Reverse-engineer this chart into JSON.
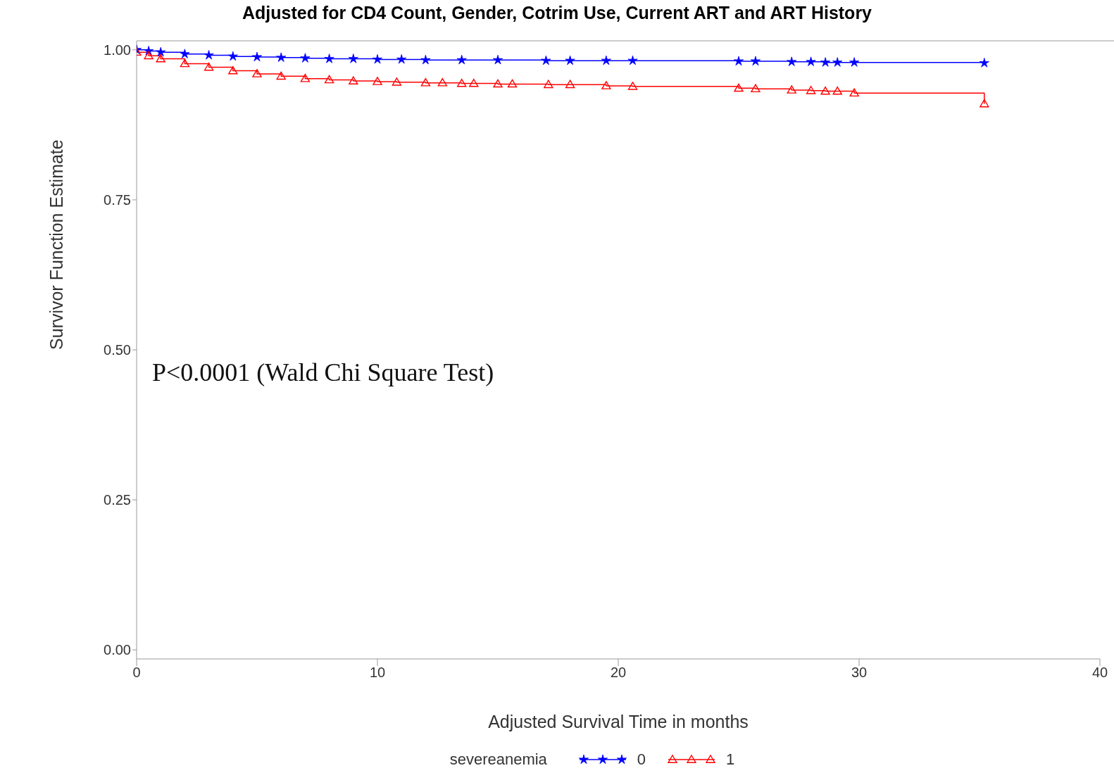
{
  "chart_data": {
    "type": "step",
    "title": "Adjusted for CD4 Count, Gender, Cotrim Use, Current ART and ART History",
    "xlabel": "Adjusted Survival Time in months",
    "ylabel": "Survivor Function Estimate",
    "legend_title": "severeanemia",
    "legend": "bottom",
    "grid": false,
    "annotations": [
      "P<0.0001 (Wald Chi Square Test)"
    ],
    "xlim": [
      0,
      40
    ],
    "xticks": [
      0,
      10,
      20,
      30,
      40
    ],
    "ylim": [
      -0.015,
      1.015
    ],
    "yticks": [
      {
        "value": 0,
        "label": "0.00"
      },
      {
        "value": 0.25,
        "label": "0.25"
      },
      {
        "value": 0.5,
        "label": "0.50"
      },
      {
        "value": 0.75,
        "label": "0.75"
      },
      {
        "value": 1,
        "label": "1.00"
      }
    ],
    "series": [
      {
        "name": "0",
        "color": "#0000ff",
        "marker": "star",
        "x": [
          0,
          0.5,
          1,
          2,
          3,
          4,
          5,
          6,
          7,
          8,
          9,
          10,
          11,
          12,
          13.5,
          15,
          17,
          18,
          19.5,
          20.6,
          25,
          25.7,
          27.2,
          28,
          28.6,
          29.1,
          29.8,
          35.2
        ],
        "values": [
          1.0,
          0.998,
          0.996,
          0.993,
          0.991,
          0.989,
          0.988,
          0.987,
          0.986,
          0.985,
          0.985,
          0.984,
          0.984,
          0.983,
          0.983,
          0.983,
          0.982,
          0.982,
          0.982,
          0.982,
          0.981,
          0.981,
          0.98,
          0.98,
          0.979,
          0.979,
          0.979,
          0.978
        ]
      },
      {
        "name": "1",
        "color": "#ff0000",
        "marker": "triangle",
        "x": [
          0,
          0.5,
          1,
          2,
          3,
          4,
          5,
          6,
          7,
          8,
          9,
          10,
          10.8,
          12,
          12.7,
          13.5,
          14,
          15,
          15.6,
          17.1,
          18,
          19.5,
          20.6,
          25,
          25.7,
          27.2,
          28,
          28.6,
          29.1,
          29.8,
          35.2
        ],
        "values": [
          0.996,
          0.99,
          0.985,
          0.977,
          0.971,
          0.965,
          0.96,
          0.956,
          0.952,
          0.95,
          0.948,
          0.947,
          0.946,
          0.945,
          0.945,
          0.944,
          0.944,
          0.943,
          0.943,
          0.942,
          0.942,
          0.94,
          0.939,
          0.936,
          0.935,
          0.933,
          0.932,
          0.931,
          0.931,
          0.928,
          0.91
        ]
      }
    ]
  }
}
